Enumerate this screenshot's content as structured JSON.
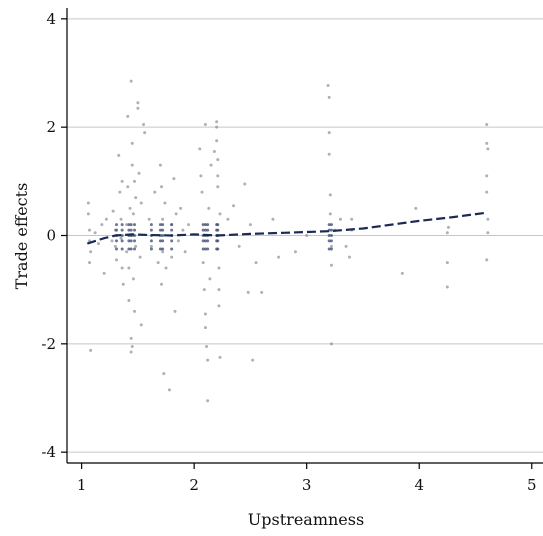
{
  "chart_data": {
    "type": "scatter",
    "title": "",
    "xlabel": "Upstreamness",
    "ylabel": "Trade effects",
    "xlim": [
      0.87,
      5.1
    ],
    "ylim": [
      -4.2,
      4.2
    ],
    "x_ticks": [
      1,
      2,
      3,
      4,
      5
    ],
    "y_ticks": [
      -4,
      -2,
      0,
      2,
      4
    ],
    "grid": "horizontal",
    "legend": "none",
    "colors": {
      "points": "#7f8697",
      "points_dark": "#3a4a6e",
      "fit_line": "#1a2a55",
      "grid": "#c6c6c6",
      "axis": "#000000"
    },
    "fit_line": {
      "style": "dashed",
      "x": [
        1.05,
        1.2,
        1.3,
        1.45,
        1.6,
        1.8,
        2.0,
        2.2,
        2.5,
        2.8,
        3.2,
        3.5,
        4.0,
        4.3,
        4.6
      ],
      "y": [
        -0.15,
        -0.05,
        0.0,
        0.02,
        0.01,
        0.0,
        0.02,
        0.0,
        0.03,
        0.05,
        0.08,
        0.13,
        0.27,
        0.34,
        0.42
      ]
    },
    "series": [
      {
        "values": [
          [
            1.06,
            0.6
          ],
          [
            1.06,
            0.4
          ],
          [
            1.07,
            0.1
          ],
          [
            1.07,
            -0.1
          ],
          [
            1.08,
            -0.3
          ],
          [
            1.07,
            -0.5
          ],
          [
            1.08,
            -2.12
          ],
          [
            1.12,
            0.05
          ],
          [
            1.15,
            -0.15
          ],
          [
            1.18,
            0.2
          ],
          [
            1.2,
            -0.7
          ],
          [
            1.22,
            0.3
          ],
          [
            1.27,
            -0.1
          ],
          [
            1.28,
            0.45
          ],
          [
            1.3,
            0.1
          ],
          [
            1.3,
            -0.2
          ],
          [
            1.31,
            -0.45
          ],
          [
            1.33,
            1.48
          ],
          [
            1.34,
            0.8
          ],
          [
            1.35,
            0.3
          ],
          [
            1.35,
            -0.05
          ],
          [
            1.36,
            -0.6
          ],
          [
            1.37,
            -0.9
          ],
          [
            1.36,
            1.0
          ],
          [
            1.4,
            0.2
          ],
          [
            1.4,
            -0.3
          ],
          [
            1.41,
            2.2
          ],
          [
            1.41,
            0.9
          ],
          [
            1.42,
            -1.2
          ],
          [
            1.42,
            -0.6
          ],
          [
            1.43,
            0.5
          ],
          [
            1.44,
            2.85
          ],
          [
            1.44,
            -1.9
          ],
          [
            1.44,
            -2.15
          ],
          [
            1.45,
            -2.05
          ],
          [
            1.45,
            1.7
          ],
          [
            1.45,
            1.3
          ],
          [
            1.45,
            0.0
          ],
          [
            1.46,
            -0.8
          ],
          [
            1.46,
            0.4
          ],
          [
            1.47,
            -1.4
          ],
          [
            1.47,
            1.0
          ],
          [
            1.48,
            -0.2
          ],
          [
            1.48,
            0.7
          ],
          [
            1.5,
            2.35
          ],
          [
            1.5,
            2.45
          ],
          [
            1.51,
            1.15
          ],
          [
            1.52,
            -0.4
          ],
          [
            1.53,
            0.6
          ],
          [
            1.53,
            -1.65
          ],
          [
            1.55,
            2.05
          ],
          [
            1.56,
            1.9
          ],
          [
            1.6,
            0.3
          ],
          [
            1.62,
            -0.2
          ],
          [
            1.65,
            0.8
          ],
          [
            1.68,
            -0.5
          ],
          [
            1.7,
            1.3
          ],
          [
            1.71,
            0.9
          ],
          [
            1.71,
            -0.9
          ],
          [
            1.72,
            0.3
          ],
          [
            1.72,
            -0.3
          ],
          [
            1.73,
            -2.55
          ],
          [
            1.74,
            0.6
          ],
          [
            1.75,
            -0.6
          ],
          [
            1.78,
            -2.85
          ],
          [
            1.8,
            0.2
          ],
          [
            1.8,
            -0.4
          ],
          [
            1.82,
            1.05
          ],
          [
            1.83,
            -1.4
          ],
          [
            1.84,
            0.4
          ],
          [
            1.86,
            -0.1
          ],
          [
            1.88,
            0.5
          ],
          [
            1.9,
            0.1
          ],
          [
            1.92,
            -0.3
          ],
          [
            1.95,
            0.2
          ],
          [
            2.05,
            1.6
          ],
          [
            2.06,
            1.1
          ],
          [
            2.07,
            0.8
          ],
          [
            2.08,
            -0.5
          ],
          [
            2.09,
            -1.0
          ],
          [
            2.1,
            2.05
          ],
          [
            2.1,
            -1.45
          ],
          [
            2.1,
            -1.7
          ],
          [
            2.11,
            -2.05
          ],
          [
            2.12,
            -2.3
          ],
          [
            2.12,
            -3.05
          ],
          [
            2.13,
            0.5
          ],
          [
            2.14,
            -0.8
          ],
          [
            2.15,
            1.3
          ],
          [
            2.18,
            1.55
          ],
          [
            2.2,
            2.1
          ],
          [
            2.2,
            2.0
          ],
          [
            2.2,
            1.75
          ],
          [
            2.21,
            1.4
          ],
          [
            2.21,
            1.1
          ],
          [
            2.21,
            0.9
          ],
          [
            2.22,
            -0.6
          ],
          [
            2.22,
            -1.0
          ],
          [
            2.22,
            -1.3
          ],
          [
            2.23,
            -2.25
          ],
          [
            2.23,
            0.4
          ],
          [
            2.3,
            0.3
          ],
          [
            2.35,
            0.55
          ],
          [
            2.4,
            -0.2
          ],
          [
            2.45,
            0.95
          ],
          [
            2.48,
            -1.05
          ],
          [
            2.5,
            0.2
          ],
          [
            2.52,
            -2.3
          ],
          [
            2.55,
            -0.5
          ],
          [
            2.6,
            -1.05
          ],
          [
            2.7,
            0.3
          ],
          [
            2.75,
            -0.4
          ],
          [
            2.9,
            -0.3
          ],
          [
            3.0,
            0.0
          ],
          [
            3.19,
            2.77
          ],
          [
            3.2,
            2.55
          ],
          [
            3.2,
            1.9
          ],
          [
            3.2,
            1.5
          ],
          [
            3.21,
            0.75
          ],
          [
            3.21,
            0.4
          ],
          [
            3.22,
            -0.2
          ],
          [
            3.22,
            -0.55
          ],
          [
            3.22,
            -2.0
          ],
          [
            3.25,
            0.1
          ],
          [
            3.3,
            0.3
          ],
          [
            3.35,
            -0.2
          ],
          [
            3.4,
            0.3
          ],
          [
            3.4,
            0.1
          ],
          [
            3.38,
            -0.4
          ],
          [
            3.85,
            -0.7
          ],
          [
            3.97,
            0.5
          ],
          [
            4.25,
            0.05
          ],
          [
            4.25,
            -0.5
          ],
          [
            4.25,
            -0.95
          ],
          [
            4.26,
            0.15
          ],
          [
            4.6,
            2.05
          ],
          [
            4.6,
            1.7
          ],
          [
            4.61,
            1.6
          ],
          [
            4.6,
            1.1
          ],
          [
            4.6,
            0.8
          ],
          [
            4.61,
            0.3
          ],
          [
            4.61,
            0.05
          ],
          [
            4.6,
            -0.45
          ]
        ]
      }
    ]
  }
}
